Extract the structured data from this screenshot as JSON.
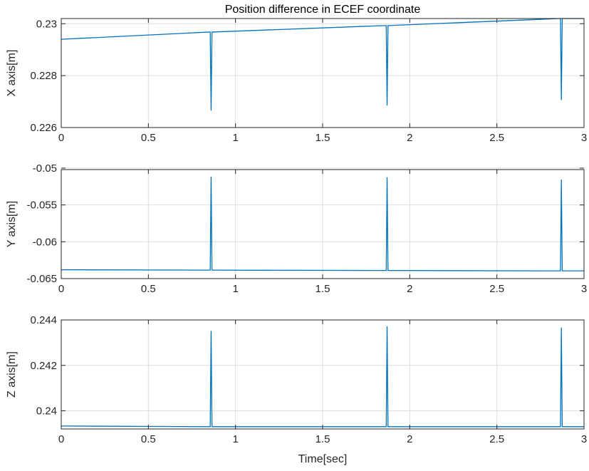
{
  "figure": {
    "title": "Position difference in ECEF coordinate",
    "line_color": "#0072BD",
    "grid_color": "#dedede",
    "axis_color": "#262626"
  },
  "chart_data": [
    {
      "type": "line",
      "title": "Position difference in ECEF coordinate",
      "xlabel": "",
      "ylabel": "X axis[m]",
      "xlim": [
        0,
        3
      ],
      "ylim": [
        0.226,
        0.2302
      ],
      "xticks": [
        0,
        0.5,
        1,
        1.5,
        2,
        2.5,
        3
      ],
      "xtick_labels": [
        "0",
        "0.5",
        "1",
        "1.5",
        "2",
        "2.5",
        "3"
      ],
      "yticks": [
        0.226,
        0.228,
        0.23
      ],
      "ytick_labels": [
        "0.226",
        "0.228",
        "0.23"
      ],
      "grid": true,
      "series": [
        {
          "x": [
            0,
            0.85,
            0.855,
            0.86,
            0.865,
            0.87,
            1.86,
            1.865,
            1.87,
            1.875,
            1.88,
            2.86,
            2.865,
            2.87,
            2.875,
            2.88,
            3.0
          ],
          "y": [
            0.2294,
            0.22968,
            0.22968,
            0.22667,
            0.22968,
            0.22968,
            0.22993,
            0.22993,
            0.22687,
            0.22993,
            0.22993,
            0.2302,
            0.2302,
            0.22707,
            0.2302,
            0.2302,
            0.2302
          ]
        }
      ]
    },
    {
      "type": "line",
      "xlabel": "",
      "ylabel": "Y axis[m]",
      "xlim": [
        0,
        3
      ],
      "ylim": [
        -0.065,
        -0.0502
      ],
      "xticks": [
        0,
        0.5,
        1,
        1.5,
        2,
        2.5,
        3
      ],
      "xtick_labels": [
        "0",
        "0.5",
        "1",
        "1.5",
        "2",
        "2.5",
        "3"
      ],
      "yticks": [
        -0.065,
        -0.06,
        -0.055,
        -0.05
      ],
      "ytick_labels": [
        "-0.065",
        "-0.06",
        "-0.055",
        "-0.05"
      ],
      "grid": true,
      "series": [
        {
          "x": [
            0,
            0.85,
            0.855,
            0.86,
            0.865,
            0.87,
            1.86,
            1.865,
            1.87,
            1.875,
            1.88,
            2.86,
            2.865,
            2.87,
            2.875,
            2.88,
            3.0
          ],
          "y": [
            -0.0638,
            -0.06385,
            -0.06385,
            -0.0512,
            -0.06385,
            -0.06385,
            -0.0639,
            -0.0639,
            -0.0513,
            -0.0639,
            -0.0639,
            -0.06395,
            -0.06395,
            -0.0516,
            -0.06395,
            -0.06395,
            -0.06395
          ]
        }
      ]
    },
    {
      "type": "line",
      "xlabel": "Time[sec]",
      "ylabel": "Z axis[m]",
      "xlim": [
        0,
        3
      ],
      "ylim": [
        0.2392,
        0.244
      ],
      "xticks": [
        0,
        0.5,
        1,
        1.5,
        2,
        2.5,
        3
      ],
      "xtick_labels": [
        "0",
        "0.5",
        "1",
        "1.5",
        "2",
        "2.5",
        "3"
      ],
      "yticks": [
        0.24,
        0.242,
        0.244
      ],
      "ytick_labels": [
        "0.24",
        "0.242",
        "0.244"
      ],
      "grid": true,
      "series": [
        {
          "x": [
            0,
            0.85,
            0.855,
            0.86,
            0.865,
            0.87,
            1.86,
            1.865,
            1.87,
            1.875,
            1.88,
            2.86,
            2.865,
            2.87,
            2.875,
            2.88,
            3.0
          ],
          "y": [
            0.23933,
            0.2393,
            0.2393,
            0.2435,
            0.2393,
            0.2393,
            0.2393,
            0.2393,
            0.2437,
            0.2393,
            0.2393,
            0.2393,
            0.2393,
            0.24365,
            0.2393,
            0.2393,
            0.2393
          ]
        }
      ]
    }
  ]
}
